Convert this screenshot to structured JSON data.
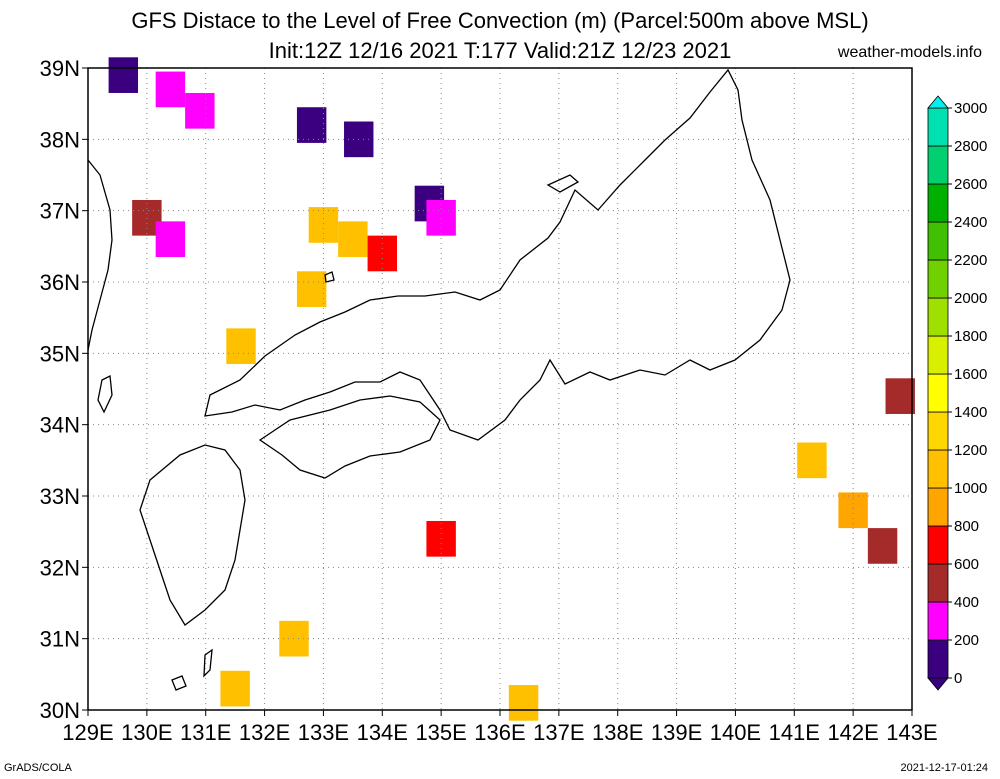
{
  "title_line1": "GFS Distace to the Level of Free Convection (m) (Parcel:500m above MSL)",
  "title_line2": "Init:12Z 12/16 2021 T:177 Valid:21Z 12/23 2021",
  "site": "weather-models.info",
  "footer_left": "GrADS/COLA",
  "footer_right": "2021-12-17-01:24",
  "lat_labels": [
    "39N",
    "38N",
    "37N",
    "36N",
    "35N",
    "34N",
    "33N",
    "32N",
    "31N",
    "30N"
  ],
  "lon_labels": [
    "129E",
    "130E",
    "131E",
    "132E",
    "133E",
    "134E",
    "135E",
    "136E",
    "137E",
    "138E",
    "139E",
    "140E",
    "141E",
    "142E",
    "143E"
  ],
  "colorbar": {
    "levels": [
      "0",
      "200",
      "400",
      "600",
      "800",
      "1000",
      "1200",
      "1400",
      "1600",
      "1800",
      "2000",
      "2200",
      "2400",
      "2600",
      "2800",
      "3000"
    ],
    "colors": [
      "#3a0080",
      "#ff00ff",
      "#a52a2a",
      "#ff0000",
      "#ffa500",
      "#ffc000",
      "#ffd700",
      "#ffff00",
      "#d8f000",
      "#a0e000",
      "#70d000",
      "#40c000",
      "#00b000",
      "#00d070",
      "#00e0b0",
      "#00f0f0"
    ]
  },
  "field_data": {
    "type": "heatmap",
    "units": "m",
    "cells": [
      {
        "lon": 129.6,
        "lat": 38.9,
        "value": 100
      },
      {
        "lon": 130.4,
        "lat": 38.7,
        "value": 300
      },
      {
        "lon": 130.9,
        "lat": 38.4,
        "value": 200
      },
      {
        "lon": 132.8,
        "lat": 38.2,
        "value": 50
      },
      {
        "lon": 133.6,
        "lat": 38.0,
        "value": 100
      },
      {
        "lon": 134.8,
        "lat": 37.1,
        "value": 50
      },
      {
        "lon": 135.0,
        "lat": 36.9,
        "value": 250
      },
      {
        "lon": 130.0,
        "lat": 36.9,
        "value": 400
      },
      {
        "lon": 130.4,
        "lat": 36.6,
        "value": 300
      },
      {
        "lon": 133.0,
        "lat": 36.8,
        "value": 1000
      },
      {
        "lon": 133.5,
        "lat": 36.6,
        "value": 1000
      },
      {
        "lon": 134.0,
        "lat": 36.4,
        "value": 700
      },
      {
        "lon": 132.8,
        "lat": 35.9,
        "value": 1000
      },
      {
        "lon": 131.6,
        "lat": 35.1,
        "value": 1000
      },
      {
        "lon": 135.0,
        "lat": 32.4,
        "value": 700
      },
      {
        "lon": 141.3,
        "lat": 33.5,
        "value": 1100
      },
      {
        "lon": 142.0,
        "lat": 32.8,
        "value": 900
      },
      {
        "lon": 142.5,
        "lat": 32.3,
        "value": 500
      },
      {
        "lon": 142.8,
        "lat": 34.4,
        "value": 400
      },
      {
        "lon": 132.5,
        "lat": 31.0,
        "value": 1100
      },
      {
        "lon": 131.5,
        "lat": 30.3,
        "value": 1100
      },
      {
        "lon": 136.4,
        "lat": 30.1,
        "value": 1000
      }
    ]
  }
}
